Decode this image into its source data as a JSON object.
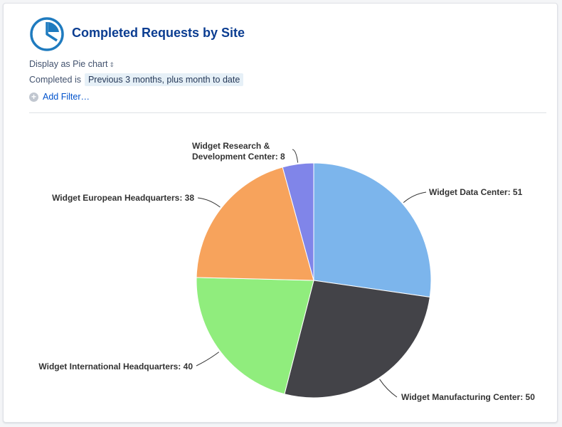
{
  "header": {
    "title": "Completed Requests by Site",
    "icon": "pie-chart-icon"
  },
  "controls": {
    "display_prefix": "Display as",
    "display_value": "Pie chart",
    "completed_label": "Completed",
    "completed_operator": "is",
    "completed_value": "Previous 3 months, plus month to date",
    "add_filter": "Add Filter…"
  },
  "colors": {
    "accent": "#0b3d91",
    "link": "#0052cc",
    "icon": "#1f7bbf"
  },
  "chart_data": {
    "type": "pie",
    "title": "",
    "series": [
      {
        "name": "Widget Data Center",
        "value": 51,
        "color": "#7cb5ec"
      },
      {
        "name": "Widget Manufacturing Center",
        "value": 50,
        "color": "#434348"
      },
      {
        "name": "Widget International Headquarters",
        "value": 40,
        "color": "#90ed7d"
      },
      {
        "name": "Widget European Headquarters",
        "value": 38,
        "color": "#f7a35c"
      },
      {
        "name": "Widget Research & Development Center",
        "value": 8,
        "color": "#8085e9"
      }
    ],
    "labels": [
      {
        "line1": "Widget Data Center: 51"
      },
      {
        "line1": "Widget Manufacturing Center: 50"
      },
      {
        "line1": "Widget International Headquarters: 40"
      },
      {
        "line1": "Widget European Headquarters: 38"
      },
      {
        "line1": "Widget Research &",
        "line2": "Development Center: 8"
      }
    ]
  }
}
